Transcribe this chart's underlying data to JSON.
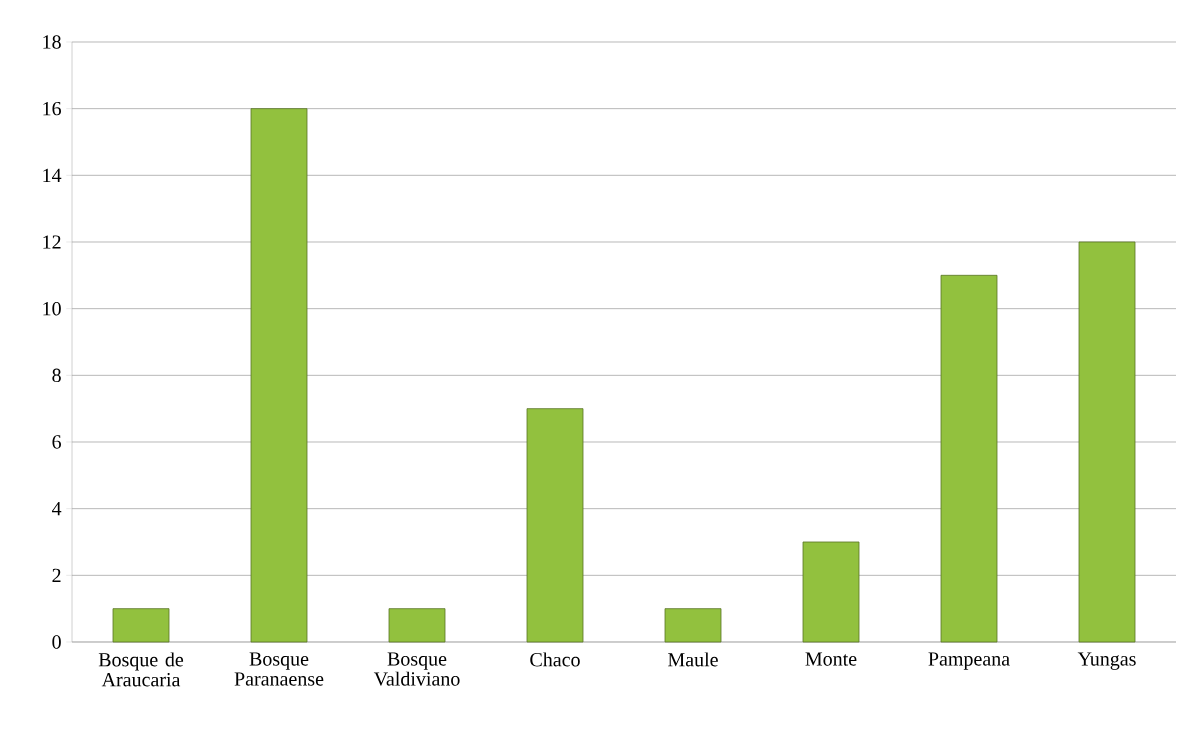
{
  "chart_data": {
    "type": "bar",
    "categories": [
      "Bosque de Araucaria",
      "Bosque Paranaense",
      "Bosque Valdiviano",
      "Chaco",
      "Maule",
      "Monte",
      "Pampeana",
      "Yungas"
    ],
    "values": [
      1,
      16,
      1,
      7,
      1,
      3,
      11,
      12
    ],
    "color": "#92c13e",
    "ylim": [
      0,
      18
    ],
    "yticks": [
      0,
      2,
      4,
      6,
      8,
      10,
      12,
      14,
      16,
      18
    ],
    "grid": "y"
  }
}
